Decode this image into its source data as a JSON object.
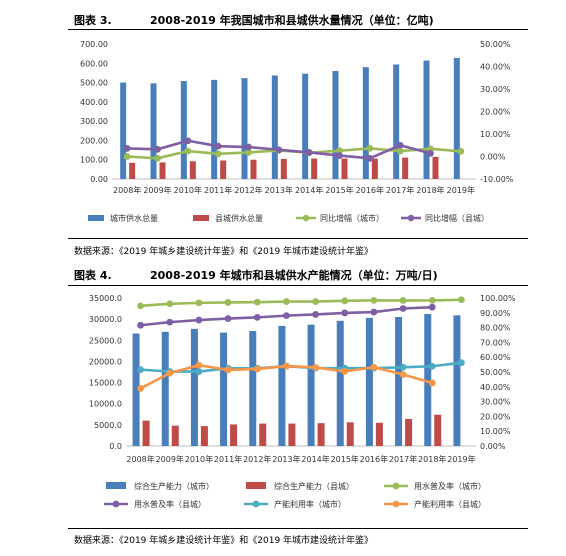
{
  "figures": [
    {
      "number": "图表 3.",
      "title": "2008-2019 年我国城市和县城供水量情况（单位：亿吨)",
      "source": "数据来源：《2019 年城乡建设统计年鉴》和《2019 年城市建设统计年鉴》"
    },
    {
      "number": "图表 4.",
      "title": "2008-2019 年城市和县城供水产能情况（单位：万吨/日)",
      "source": "数据来源：《2019 年城乡建设统计年鉴》和《2019 年城市建设统计年鉴》"
    }
  ],
  "chart_data": [
    {
      "type": "bar",
      "categories": [
        "2008年",
        "2009年",
        "2010年",
        "2011年",
        "2012年",
        "2013年",
        "2014年",
        "2015年",
        "2016年",
        "2017年",
        "2018年",
        "2019年"
      ],
      "y_left": {
        "ylim": [
          0,
          700
        ],
        "ticks": [
          "0.00",
          "100.00",
          "200.00",
          "300.00",
          "400.00",
          "500.00",
          "600.00",
          "700.00"
        ]
      },
      "y_right": {
        "ylim": [
          -10,
          50
        ],
        "ticks": [
          "-10.00%",
          "0.00%",
          "10.00%",
          "20.00%",
          "30.00%",
          "40.00%",
          "50.00%"
        ]
      },
      "series": [
        {
          "name": "城市供水总量",
          "kind": "bar",
          "axis": "left",
          "color": "#4a7ebb",
          "values": [
            500,
            496,
            508,
            514,
            523,
            537,
            546,
            560,
            580,
            594,
            614,
            628
          ]
        },
        {
          "name": "县城供水总量",
          "kind": "bar",
          "axis": "left",
          "color": "#be4b48",
          "values": [
            84,
            86,
            92,
            96,
            100,
            104,
            106,
            106,
            106,
            111,
            115,
            null
          ]
        },
        {
          "name": "同比增幅（城市）",
          "kind": "line",
          "axis": "right",
          "color": "#9bbb59",
          "values": [
            0.0,
            -0.8,
            2.4,
            1.2,
            1.8,
            2.7,
            1.7,
            2.6,
            3.6,
            2.4,
            3.4,
            2.3
          ]
        },
        {
          "name": "同比增幅（县城）",
          "kind": "line",
          "axis": "right",
          "color": "#7f5fa3",
          "values": [
            3.6,
            3.2,
            7.0,
            4.6,
            4.2,
            3.0,
            1.8,
            0.4,
            -0.8,
            5.0,
            1.4,
            null
          ]
        }
      ],
      "legend_position": "bottom",
      "grid": false
    },
    {
      "type": "bar",
      "categories": [
        "2008年",
        "2009年",
        "2010年",
        "2011年",
        "2012年",
        "2013年",
        "2014年",
        "2015年",
        "2016年",
        "2017年",
        "2018年",
        "2019年"
      ],
      "y_left": {
        "ylim": [
          0,
          35000
        ],
        "ticks": [
          "0.0",
          "5000.0",
          "10000.0",
          "15000.0",
          "20000.0",
          "25000.0",
          "30000.0",
          "35000.0"
        ]
      },
      "y_right": {
        "ylim": [
          0,
          100
        ],
        "ticks": [
          "0.00%",
          "10.00%",
          "20.00%",
          "30.00%",
          "40.00%",
          "50.00%",
          "60.00%",
          "70.00%",
          "80.00%",
          "90.00%",
          "100.00%"
        ]
      },
      "series": [
        {
          "name": "综合生产能力（城市）",
          "kind": "bar",
          "axis": "left",
          "color": "#4a7ebb",
          "values": [
            26600,
            27000,
            27700,
            26800,
            27200,
            28400,
            28700,
            29600,
            30300,
            30500,
            31200,
            30900
          ]
        },
        {
          "name": "综合生产能力（县城）",
          "kind": "bar",
          "axis": "left",
          "color": "#be4b48",
          "values": [
            6000,
            4800,
            4700,
            5100,
            5300,
            5300,
            5400,
            5600,
            5500,
            6400,
            7400,
            null
          ]
        },
        {
          "name": "用水普及率（城市）",
          "kind": "line",
          "axis": "right",
          "color": "#9bbb59",
          "values": [
            94.7,
            96.1,
            96.7,
            97.0,
            97.2,
            97.6,
            97.6,
            98.1,
            98.4,
            98.3,
            98.4,
            98.8
          ]
        },
        {
          "name": "用水普及率（县城）",
          "kind": "line",
          "axis": "right",
          "color": "#7f5fa3",
          "values": [
            81.6,
            83.7,
            85.1,
            86.1,
            86.9,
            88.1,
            88.9,
            89.9,
            90.5,
            92.9,
            93.8,
            null
          ]
        },
        {
          "name": "产能利用率（城市）",
          "kind": "line",
          "axis": "right",
          "color": "#4bacc6",
          "values": [
            51.6,
            50.3,
            50.3,
            52.5,
            52.5,
            53.9,
            52.6,
            52.6,
            52.6,
            53.2,
            53.9,
            56.3
          ]
        },
        {
          "name": "产能利用率（县城）",
          "kind": "line",
          "axis": "right",
          "color": "#f79646",
          "values": [
            38.9,
            49.2,
            54.6,
            51.4,
            52.0,
            54.0,
            53.1,
            50.4,
            53.2,
            48.3,
            42.6,
            null
          ]
        }
      ],
      "legend_position": "bottom",
      "grid": false
    }
  ]
}
